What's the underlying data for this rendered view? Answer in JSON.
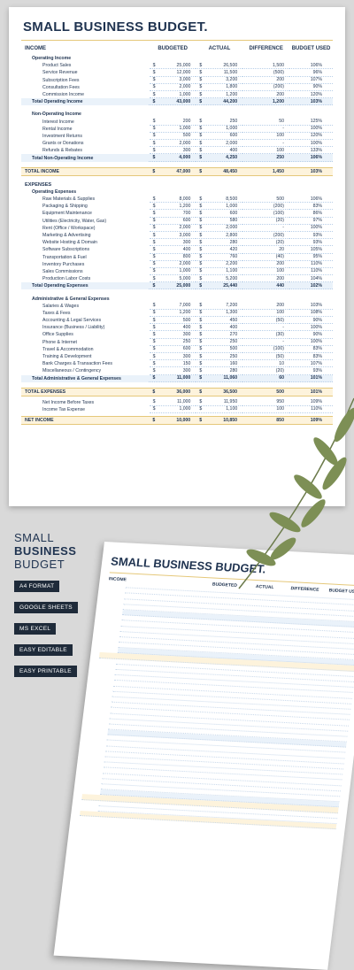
{
  "title": "SMALL BUSINESS BUDGET.",
  "columns": [
    "BUDGETED",
    "ACTUAL",
    "DIFFERENCE",
    "BUDGET USED"
  ],
  "income_label": "INCOME",
  "operating_income": {
    "label": "Operating Income",
    "rows": [
      [
        "Product Sales",
        "25,000",
        "26,500",
        "1,500",
        "106%"
      ],
      [
        "Service Revenue",
        "12,000",
        "11,500",
        "(500)",
        "96%"
      ],
      [
        "Subscription Fees",
        "3,000",
        "3,200",
        "200",
        "107%"
      ],
      [
        "Consultation Fees",
        "2,000",
        "1,800",
        "(200)",
        "90%"
      ],
      [
        "Commission Income",
        "1,000",
        "1,200",
        "200",
        "120%"
      ]
    ],
    "total": [
      "Total Operating Income",
      "43,000",
      "44,200",
      "1,200",
      "103%"
    ]
  },
  "non_operating_income": {
    "label": "Non-Operating Income",
    "rows": [
      [
        "Interest Income",
        "200",
        "250",
        "50",
        "125%"
      ],
      [
        "Rental Income",
        "1,000",
        "1,000",
        "-",
        "100%"
      ],
      [
        "Investment Returns",
        "500",
        "600",
        "100",
        "120%"
      ],
      [
        "Grants or Donations",
        "2,000",
        "2,000",
        "-",
        "100%"
      ],
      [
        "Refunds & Rebates",
        "300",
        "400",
        "100",
        "133%"
      ]
    ],
    "total": [
      "Total Non-Operating Income",
      "4,000",
      "4,250",
      "250",
      "106%"
    ]
  },
  "total_income": [
    "TOTAL INCOME",
    "47,000",
    "48,450",
    "1,450",
    "103%"
  ],
  "expenses_label": "EXPENSES",
  "operating_expenses": {
    "label": "Operating Expenses",
    "rows": [
      [
        "Raw Materials & Supplies",
        "8,000",
        "8,500",
        "500",
        "106%"
      ],
      [
        "Packaging & Shipping",
        "1,200",
        "1,000",
        "(200)",
        "83%"
      ],
      [
        "Equipment Maintenance",
        "700",
        "600",
        "(100)",
        "86%"
      ],
      [
        "Utilities (Electricity, Water, Gas)",
        "600",
        "580",
        "(20)",
        "97%"
      ],
      [
        "Rent (Office / Workspace)",
        "2,000",
        "2,000",
        "-",
        "100%"
      ],
      [
        "Marketing & Advertising",
        "3,000",
        "2,800",
        "(200)",
        "93%"
      ],
      [
        "Website Hosting & Domain",
        "300",
        "280",
        "(20)",
        "93%"
      ],
      [
        "Software Subscriptions",
        "400",
        "420",
        "20",
        "105%"
      ],
      [
        "Transportation & Fuel",
        "800",
        "760",
        "(40)",
        "95%"
      ],
      [
        "Inventory Purchases",
        "2,000",
        "2,200",
        "200",
        "110%"
      ],
      [
        "Sales Commissions",
        "1,000",
        "1,100",
        "100",
        "110%"
      ],
      [
        "Production Labor Costs",
        "5,000",
        "5,200",
        "200",
        "104%"
      ]
    ],
    "total": [
      "Total Operating Expenses",
      "25,000",
      "25,440",
      "440",
      "102%"
    ]
  },
  "admin_expenses": {
    "label": "Administrative & General Expenses",
    "rows": [
      [
        "Salaries & Wages",
        "7,000",
        "7,200",
        "200",
        "103%"
      ],
      [
        "Taxes & Fees",
        "1,200",
        "1,300",
        "100",
        "108%"
      ],
      [
        "Accounting & Legal Services",
        "500",
        "450",
        "(50)",
        "90%"
      ],
      [
        "Insurance (Business / Liability)",
        "400",
        "400",
        "-",
        "100%"
      ],
      [
        "Office Supplies",
        "300",
        "270",
        "(30)",
        "90%"
      ],
      [
        "Phone & Internet",
        "250",
        "250",
        "-",
        "100%"
      ],
      [
        "Travel & Accommodation",
        "600",
        "500",
        "(100)",
        "83%"
      ],
      [
        "Training & Development",
        "300",
        "250",
        "(50)",
        "83%"
      ],
      [
        "Bank Charges & Transaction Fees",
        "150",
        "160",
        "10",
        "107%"
      ],
      [
        "Miscellaneous / Contingency",
        "300",
        "280",
        "(20)",
        "93%"
      ]
    ],
    "total": [
      "Total Administrative & General Expenses",
      "11,000",
      "11,060",
      "60",
      "101%"
    ]
  },
  "total_expenses": [
    "TOTAL EXPENSES",
    "36,000",
    "36,500",
    "500",
    "101%"
  ],
  "taxes": {
    "rows": [
      [
        "Net Income Before Taxes",
        "11,000",
        "11,950",
        "950",
        "109%"
      ],
      [
        "Income Tax Expense",
        "1,000",
        "1,100",
        "100",
        "110%"
      ]
    ]
  },
  "net_income": [
    "NET INCOME",
    "10,000",
    "10,850",
    "850",
    "109%"
  ],
  "promo": {
    "line1": "SMALL",
    "line2": "BUSINESS",
    "line3": "BUDGET"
  },
  "tags": [
    "A4 FORMAT",
    "GOOGLE SHEETS",
    "MS EXCEL",
    "EASY EDITABLE",
    "EASY PRINTABLE"
  ],
  "mock": {
    "title": "SMALL BUSINESS BUDGET.",
    "columns": [
      "INCOME",
      "BUDGETED",
      "ACTUAL",
      "DIFFERENCE",
      "BUDGET USED"
    ]
  },
  "currency": "$",
  "colors": {
    "navy": "#1f3350",
    "gold": "#e5c87a",
    "blue_tint": "#eaf2fa",
    "gold_tint": "#fdf3dc"
  }
}
